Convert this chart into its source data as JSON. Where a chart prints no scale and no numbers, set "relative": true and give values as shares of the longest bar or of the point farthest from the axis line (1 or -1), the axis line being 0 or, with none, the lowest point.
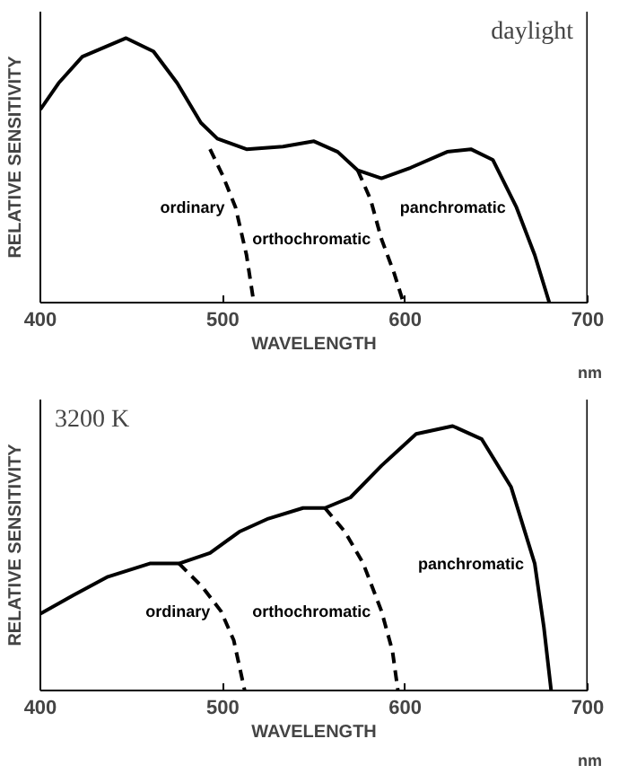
{
  "chart_data": [
    {
      "type": "line",
      "title": "daylight",
      "xlabel": "WAVELENGTH",
      "ylabel": "RELATIVE SENSITIVITY",
      "relative": true,
      "xlim": [
        400,
        700
      ],
      "xticks": [
        400,
        500,
        600,
        700
      ],
      "grid": false,
      "annotations": [
        "nm"
      ],
      "series": [
        {
          "name": "panchromatic",
          "color": "#000000",
          "line_style": "solid",
          "x": [
            400,
            410,
            423,
            447,
            462,
            475,
            488,
            497,
            513,
            533,
            550,
            563,
            574,
            587,
            603,
            623,
            636,
            648,
            661,
            671,
            679
          ],
          "values": [
            0.73,
            0.83,
            0.93,
            1.0,
            0.95,
            0.83,
            0.68,
            0.62,
            0.58,
            0.59,
            0.61,
            0.57,
            0.5,
            0.47,
            0.51,
            0.57,
            0.58,
            0.54,
            0.36,
            0.18,
            0.0
          ]
        },
        {
          "name": "ordinary",
          "color": "#000000",
          "line_style": "dashed",
          "x": [
            493,
            500,
            507,
            513,
            517
          ],
          "values": [
            0.58,
            0.48,
            0.36,
            0.18,
            0.0
          ]
        },
        {
          "name": "orthochromatic",
          "color": "#000000",
          "line_style": "dashed",
          "x": [
            574,
            581,
            587,
            594,
            599
          ],
          "values": [
            0.5,
            0.39,
            0.24,
            0.11,
            0.0
          ]
        }
      ]
    },
    {
      "type": "line",
      "title": "3200 K",
      "xlabel": "WAVELENGTH",
      "ylabel": "RELATIVE SENSITIVITY",
      "relative": true,
      "xlim": [
        400,
        700
      ],
      "xticks": [
        400,
        500,
        600,
        700
      ],
      "grid": false,
      "annotations": [
        "nm"
      ],
      "series": [
        {
          "name": "panchromatic",
          "color": "#000000",
          "line_style": "solid",
          "x": [
            400,
            418,
            437,
            460,
            476,
            493,
            509,
            525,
            544,
            556,
            570,
            587,
            606,
            626,
            642,
            658,
            671,
            676,
            680
          ],
          "values": [
            0.29,
            0.36,
            0.43,
            0.48,
            0.48,
            0.52,
            0.6,
            0.65,
            0.69,
            0.69,
            0.73,
            0.85,
            0.97,
            1.0,
            0.95,
            0.77,
            0.48,
            0.24,
            0.0
          ]
        },
        {
          "name": "ordinary",
          "color": "#000000",
          "line_style": "dashed",
          "x": [
            476,
            489,
            499,
            506,
            512
          ],
          "values": [
            0.48,
            0.39,
            0.3,
            0.19,
            0.0
          ]
        },
        {
          "name": "orthochromatic",
          "color": "#000000",
          "line_style": "dashed",
          "x": [
            556,
            567,
            577,
            587,
            593,
            596
          ],
          "values": [
            0.69,
            0.6,
            0.48,
            0.3,
            0.15,
            0.0
          ]
        }
      ]
    }
  ]
}
